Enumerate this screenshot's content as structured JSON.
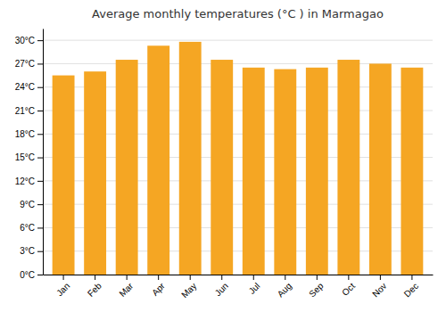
{
  "chart_data": {
    "type": "bar",
    "title": "Average monthly temperatures (°C ) in Marmagao",
    "categories": [
      "Jan",
      "Feb",
      "Mar",
      "Apr",
      "May",
      "Jun",
      "Jul",
      "Aug",
      "Sep",
      "Oct",
      "Nov",
      "Dec"
    ],
    "values": [
      25.5,
      26.0,
      27.5,
      29.3,
      29.8,
      27.5,
      26.5,
      26.3,
      26.5,
      27.5,
      27.0,
      26.5
    ],
    "color": "#F5A623",
    "ylim": [
      0,
      31.5
    ],
    "yticks": [
      {
        "value": 0,
        "label": "0°C"
      },
      {
        "value": 3,
        "label": "3°C"
      },
      {
        "value": 6,
        "label": "6°C"
      },
      {
        "value": 9,
        "label": "9°C"
      },
      {
        "value": 12,
        "label": "12°C"
      },
      {
        "value": 15,
        "label": "15°C"
      },
      {
        "value": 18,
        "label": "18°C"
      },
      {
        "value": 21,
        "label": "21°C"
      },
      {
        "value": 24,
        "label": "24°C"
      },
      {
        "value": 27,
        "label": "27°C"
      },
      {
        "value": 30,
        "label": "30°C"
      }
    ],
    "grid": true
  }
}
